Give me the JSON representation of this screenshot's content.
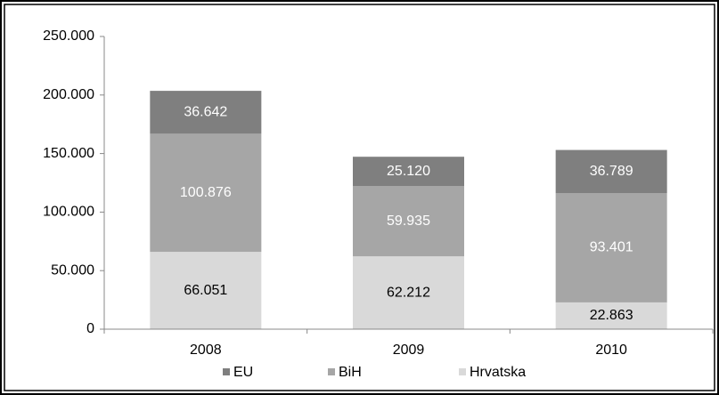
{
  "chart_data": {
    "type": "stacked_bar",
    "categories": [
      "2008",
      "2009",
      "2010"
    ],
    "series": [
      {
        "name": "EU",
        "color": "#7f7f7f",
        "label_color": "#ffffff",
        "values": [
          36642,
          25120,
          36789
        ],
        "value_labels": [
          "36.642",
          "25.120",
          "36.789"
        ]
      },
      {
        "name": "BiH",
        "color": "#a6a6a6",
        "label_color": "#ffffff",
        "values": [
          100876,
          59935,
          93401
        ],
        "value_labels": [
          "100.876",
          "59.935",
          "93.401"
        ]
      },
      {
        "name": "Hrvatska",
        "color": "#d9d9d9",
        "label_color": "#000000",
        "values": [
          66051,
          62212,
          22863
        ],
        "value_labels": [
          "66.051",
          "62.212",
          "22.863"
        ]
      }
    ],
    "ylim": [
      0,
      250000
    ],
    "yticks": [
      0,
      {
        "value": 50000,
        "label": "50.000"
      },
      {
        "value": 100000,
        "label": "100.000"
      },
      {
        "value": 150000,
        "label": "150.000"
      },
      {
        "value": 200000,
        "label": "200.000"
      },
      {
        "value": 250000,
        "label": "250.000"
      }
    ],
    "legend": "bottom"
  }
}
